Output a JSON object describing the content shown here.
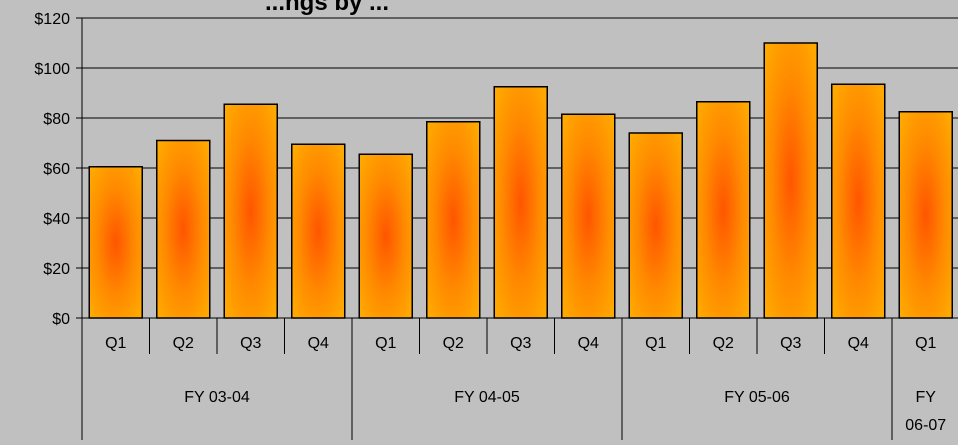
{
  "chart_data": {
    "type": "bar",
    "title": "...ngs by ...",
    "xlabel": "",
    "ylabel": "",
    "ylim": [
      0,
      120
    ],
    "grid": true,
    "y_ticks": [
      "$0",
      "$20",
      "$40",
      "$60",
      "$80",
      "$100",
      "$120"
    ],
    "categories": [
      "Q1",
      "Q2",
      "Q3",
      "Q4",
      "Q1",
      "Q2",
      "Q3",
      "Q4",
      "Q1",
      "Q2",
      "Q3",
      "Q4",
      "Q1"
    ],
    "groups": [
      {
        "label": "FY 03-04",
        "count": 4
      },
      {
        "label": "FY 04-05",
        "count": 4
      },
      {
        "label": "FY 05-06",
        "count": 4
      },
      {
        "label": "FY 06-07",
        "count": 1
      }
    ],
    "values": [
      60.5,
      71,
      85.5,
      69.5,
      65.5,
      78.5,
      92.5,
      81.5,
      74,
      86.5,
      110,
      93.5,
      82.5
    ],
    "colors": {
      "bar_edge": "#ff7a00",
      "bar_center": "#ff5a00",
      "bar_light": "#ffa600",
      "background": "#c0c0c0"
    }
  }
}
